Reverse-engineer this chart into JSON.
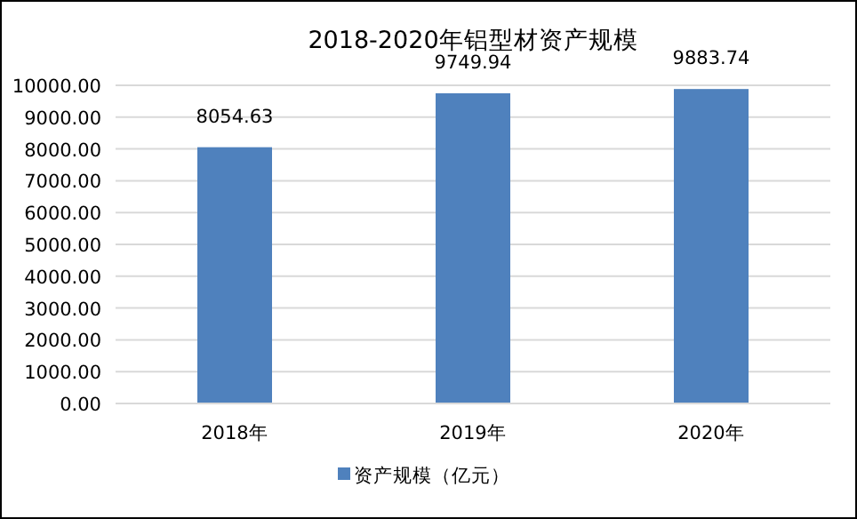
{
  "chart_data": {
    "type": "bar",
    "title": "2018-2020年铝型材资产规模",
    "categories": [
      "2018年",
      "2019年",
      "2020年"
    ],
    "series": [
      {
        "name": "资产规模（亿元）",
        "color": "#4f81bd",
        "values": [
          8054.63,
          9749.94,
          9883.74
        ]
      }
    ],
    "ylim": [
      0,
      10000
    ],
    "yticks": [
      {
        "value": 0,
        "label": "0.00"
      },
      {
        "value": 1000,
        "label": "1000.00"
      },
      {
        "value": 2000,
        "label": "2000.00"
      },
      {
        "value": 3000,
        "label": "3000.00"
      },
      {
        "value": 4000,
        "label": "4000.00"
      },
      {
        "value": 5000,
        "label": "5000.00"
      },
      {
        "value": 6000,
        "label": "6000.00"
      },
      {
        "value": 7000,
        "label": "7000.00"
      },
      {
        "value": 8000,
        "label": "8000.00"
      },
      {
        "value": 9000,
        "label": "9000.00"
      },
      {
        "value": 10000,
        "label": "10000.00"
      }
    ],
    "grid": "y",
    "legend": "bottom",
    "data_labels": true
  }
}
